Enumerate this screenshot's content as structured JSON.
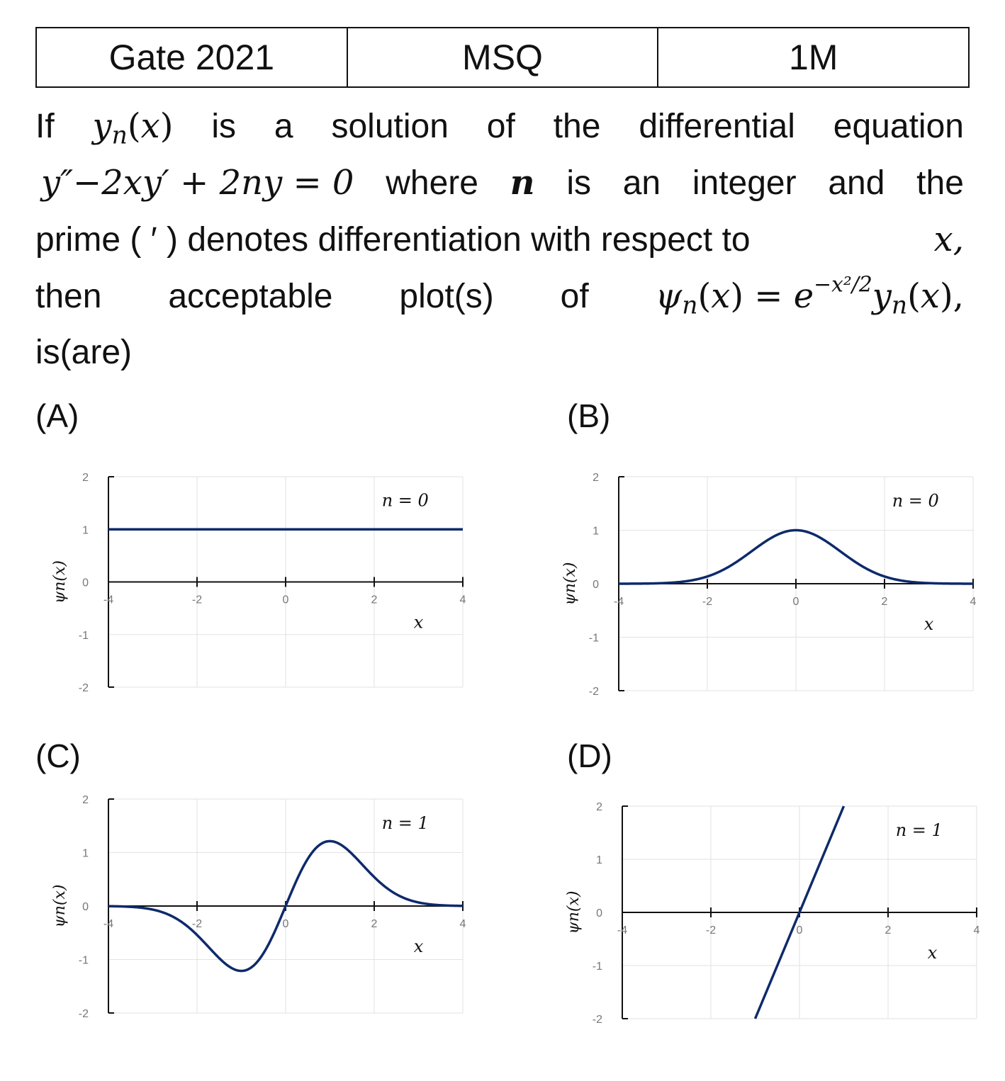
{
  "header": {
    "exam": "Gate 2021",
    "type": "MSQ",
    "marks": "1M"
  },
  "question": {
    "line1_words": [
      "If",
      "is",
      "a",
      "solution",
      "of",
      "the",
      "differential",
      "equation"
    ],
    "y_n_x": "y",
    "equation": "y″−2xy′ + 2ny = 0",
    "word_where": "where",
    "n_bold": "n",
    "line2_words": [
      "is",
      "an",
      "integer",
      "and",
      "the"
    ],
    "line3": "prime (  ′ ) denotes differentiation with respect to",
    "line3_var": "x,",
    "line4_words": [
      "then",
      "acceptable",
      "plot(s)",
      "of"
    ],
    "line5": "is(are)"
  },
  "options": [
    {
      "label": "(A)",
      "n_label": "n = 0"
    },
    {
      "label": "(B)",
      "n_label": "n = 0"
    },
    {
      "label": "(C)",
      "n_label": "n = 1"
    },
    {
      "label": "(D)",
      "n_label": "n = 1"
    }
  ],
  "axis": {
    "x_ticks": [
      "-4",
      "-2",
      "0",
      "2",
      "4"
    ],
    "y_ticks": [
      "2",
      "1",
      "0",
      "-1",
      "-2"
    ],
    "xlabel": "x",
    "ylabel": "ψn(x)"
  },
  "chart_data": [
    {
      "type": "line",
      "id": "A",
      "function": "psi = 1",
      "x": [
        -4,
        4
      ],
      "y": [
        1,
        1
      ],
      "xlim": [
        -4,
        4
      ],
      "ylim": [
        -2,
        2
      ],
      "color": "#0d2a6b"
    },
    {
      "type": "line",
      "id": "B",
      "function": "psi = exp(-x^2/2)",
      "x": [
        -4,
        -2,
        -1,
        0,
        1,
        2,
        4
      ],
      "y": [
        0.0003,
        0.135,
        0.607,
        1,
        0.607,
        0.135,
        0.0003
      ],
      "xlim": [
        -4,
        4
      ],
      "ylim": [
        -2,
        2
      ],
      "color": "#0d2a6b"
    },
    {
      "type": "line",
      "id": "C",
      "function": "psi = 2x exp(-x^2/2)",
      "x": [
        -4,
        -3,
        -1,
        0,
        1,
        3,
        4
      ],
      "y": [
        -0.003,
        -0.07,
        -1.21,
        0,
        1.21,
        0.07,
        0.003
      ],
      "xlim": [
        -4,
        4
      ],
      "ylim": [
        -2,
        2
      ],
      "color": "#0d2a6b"
    },
    {
      "type": "line",
      "id": "D",
      "function": "psi = 2x",
      "x": [
        -1,
        1
      ],
      "y": [
        -2,
        2
      ],
      "xlim": [
        -4,
        4
      ],
      "ylim": [
        -2,
        2
      ],
      "color": "#0d2a6b"
    }
  ]
}
